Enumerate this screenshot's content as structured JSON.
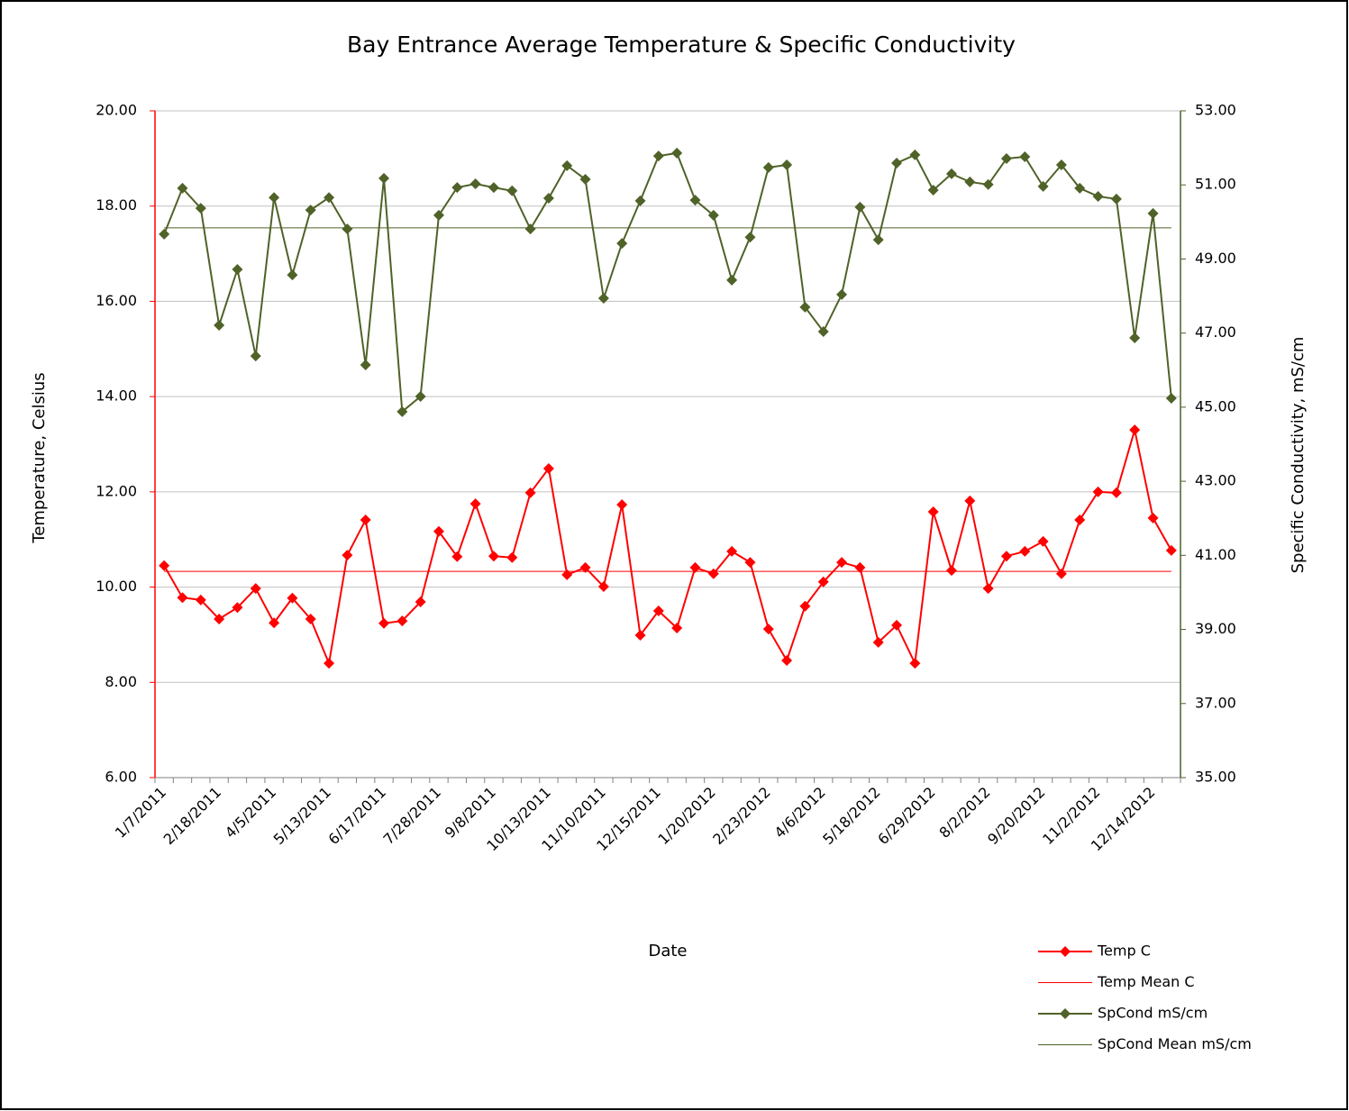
{
  "chart_data": {
    "type": "line",
    "title": "Bay Entrance Average Temperature & Specific Conductivity",
    "x_label": "Date",
    "y_label": "Temperature, Celsius",
    "y2_label": "Specific Conductivity, mS/cm",
    "categories": [
      "1/7/2011",
      null,
      null,
      "2/18/2011",
      null,
      null,
      "4/5/2011",
      null,
      null,
      "5/13/2011",
      null,
      null,
      "6/17/2011",
      null,
      null,
      "7/28/2011",
      null,
      null,
      "9/8/2011",
      null,
      null,
      "10/13/2011",
      null,
      null,
      "11/10/2011",
      null,
      null,
      "12/15/2011",
      null,
      null,
      "1/20/2012",
      null,
      null,
      "2/23/2012",
      null,
      null,
      "4/6/2012",
      null,
      null,
      "5/18/2012",
      null,
      null,
      "6/29/2012",
      null,
      null,
      "8/2/2012",
      null,
      null,
      "9/20/2012",
      null,
      null,
      "11/2/2012",
      null,
      null,
      "12/14/2012",
      null
    ],
    "ylim": [
      6,
      20
    ],
    "yticks": [
      {
        "value": 6,
        "label": "6.00"
      },
      {
        "value": 8,
        "label": "8.00"
      },
      {
        "value": 10,
        "label": "10.00"
      },
      {
        "value": 12,
        "label": "12.00"
      },
      {
        "value": 14,
        "label": "14.00"
      },
      {
        "value": 16,
        "label": "16.00"
      },
      {
        "value": 18,
        "label": "18.00"
      },
      {
        "value": 20,
        "label": "20.00"
      }
    ],
    "y2lim": [
      35,
      53
    ],
    "y2ticks": [
      {
        "value": 35,
        "label": "35.00"
      },
      {
        "value": 37,
        "label": "37.00"
      },
      {
        "value": 39,
        "label": "39.00"
      },
      {
        "value": 41,
        "label": "41.00"
      },
      {
        "value": 43,
        "label": "43.00"
      },
      {
        "value": 45,
        "label": "45.00"
      },
      {
        "value": 47,
        "label": "47.00"
      },
      {
        "value": 49,
        "label": "49.00"
      },
      {
        "value": 51,
        "label": "51.00"
      },
      {
        "value": 53,
        "label": "53.00"
      }
    ],
    "grid": true,
    "legend": "bottom-right",
    "series": [
      {
        "name": "Temp C",
        "color": "#ff0000",
        "marker": "diamond",
        "values": [
          10.45,
          9.78,
          9.73,
          9.33,
          9.57,
          9.97,
          9.25,
          9.77,
          9.33,
          8.4,
          10.67,
          11.41,
          9.24,
          9.29,
          9.69,
          11.17,
          10.64,
          11.75,
          10.65,
          10.62,
          11.98,
          12.49,
          10.26,
          10.41,
          10.01,
          11.73,
          8.99,
          9.5,
          9.14,
          10.41,
          10.28,
          10.75,
          10.52,
          9.12,
          8.46,
          9.6,
          10.11,
          10.52,
          10.41,
          8.84,
          9.2,
          8.4,
          11.58,
          10.35,
          11.81,
          9.97,
          10.65,
          10.75,
          10.96,
          10.28,
          11.41,
          12.0,
          11.98,
          13.3,
          11.45,
          10.77
        ]
      },
      {
        "name": "Temp Mean C",
        "color": "#ff0000",
        "mean": 10.33
      },
      {
        "name": "SpCond mS/cm",
        "color": "#4f6228",
        "marker": "diamond",
        "axis": "y2",
        "values": [
          49.67,
          50.91,
          50.37,
          47.21,
          48.72,
          46.38,
          50.66,
          48.57,
          50.32,
          50.66,
          49.81,
          46.14,
          51.18,
          44.88,
          45.29,
          50.18,
          50.93,
          51.03,
          50.93,
          50.84,
          49.81,
          50.64,
          51.52,
          51.15,
          47.94,
          49.42,
          50.57,
          51.78,
          51.86,
          50.59,
          50.18,
          48.43,
          49.59,
          51.47,
          51.54,
          47.7,
          47.04,
          48.04,
          50.4,
          49.52,
          51.59,
          51.81,
          50.86,
          51.3,
          51.08,
          51.01,
          51.71,
          51.76,
          50.96,
          51.54,
          50.91,
          50.69,
          50.62,
          46.87,
          50.23,
          45.24
        ]
      },
      {
        "name": "SpCond Mean mS/cm",
        "color": "#4f6228",
        "axis": "y2",
        "mean": 49.84
      }
    ]
  }
}
